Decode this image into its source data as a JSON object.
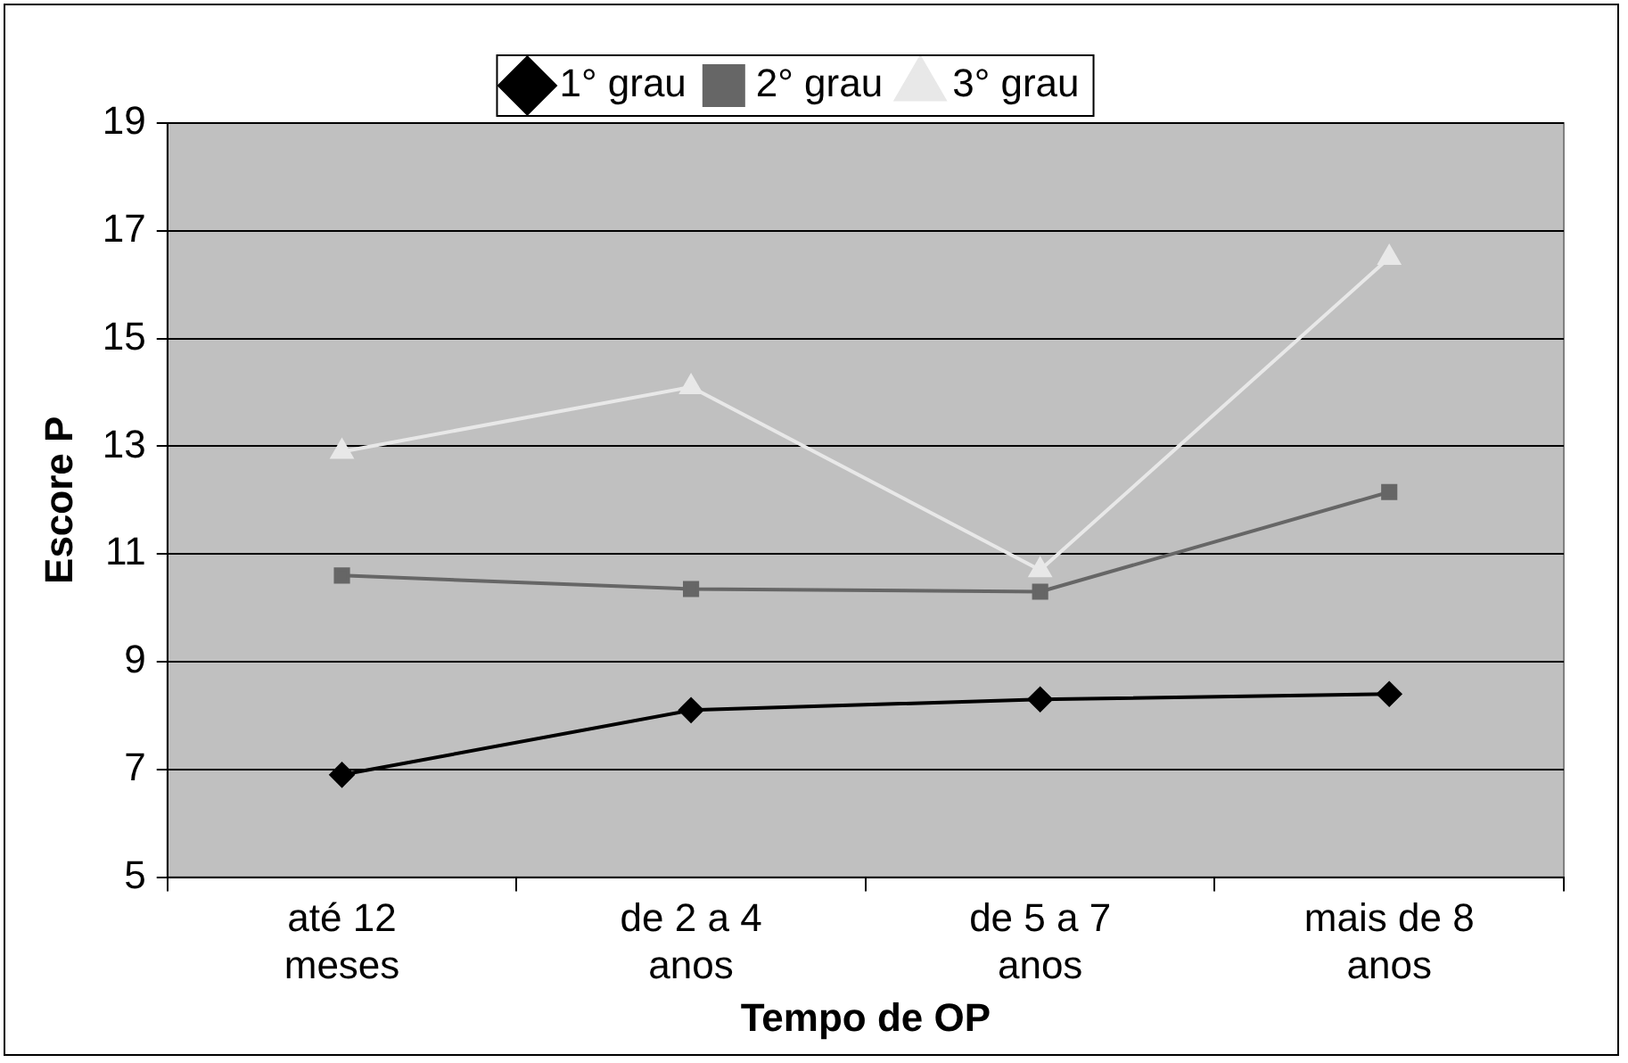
{
  "chart_data": {
    "type": "line",
    "xlabel": "Tempo de OP",
    "ylabel": "Escore P",
    "categories": [
      "até 12\nmeses",
      "de 2 a 4\nanos",
      "de 5 a 7\nanos",
      "mais de 8\nanos"
    ],
    "series": [
      {
        "name": "1° grau",
        "color": "#000000",
        "marker": "diamond",
        "values": [
          6.9,
          8.1,
          8.3,
          8.4
        ]
      },
      {
        "name": "2° grau",
        "color": "#666666",
        "marker": "square",
        "values": [
          10.6,
          10.35,
          10.3,
          12.15
        ]
      },
      {
        "name": "3° grau",
        "color": "#e8e8e8",
        "marker": "triangle",
        "values": [
          12.9,
          14.1,
          10.7,
          16.5
        ]
      }
    ],
    "ylim": [
      5,
      19
    ],
    "yticks": [
      5,
      7,
      9,
      11,
      13,
      15,
      17,
      19
    ],
    "grid": "y",
    "legend": "top",
    "line_style": "solid"
  }
}
